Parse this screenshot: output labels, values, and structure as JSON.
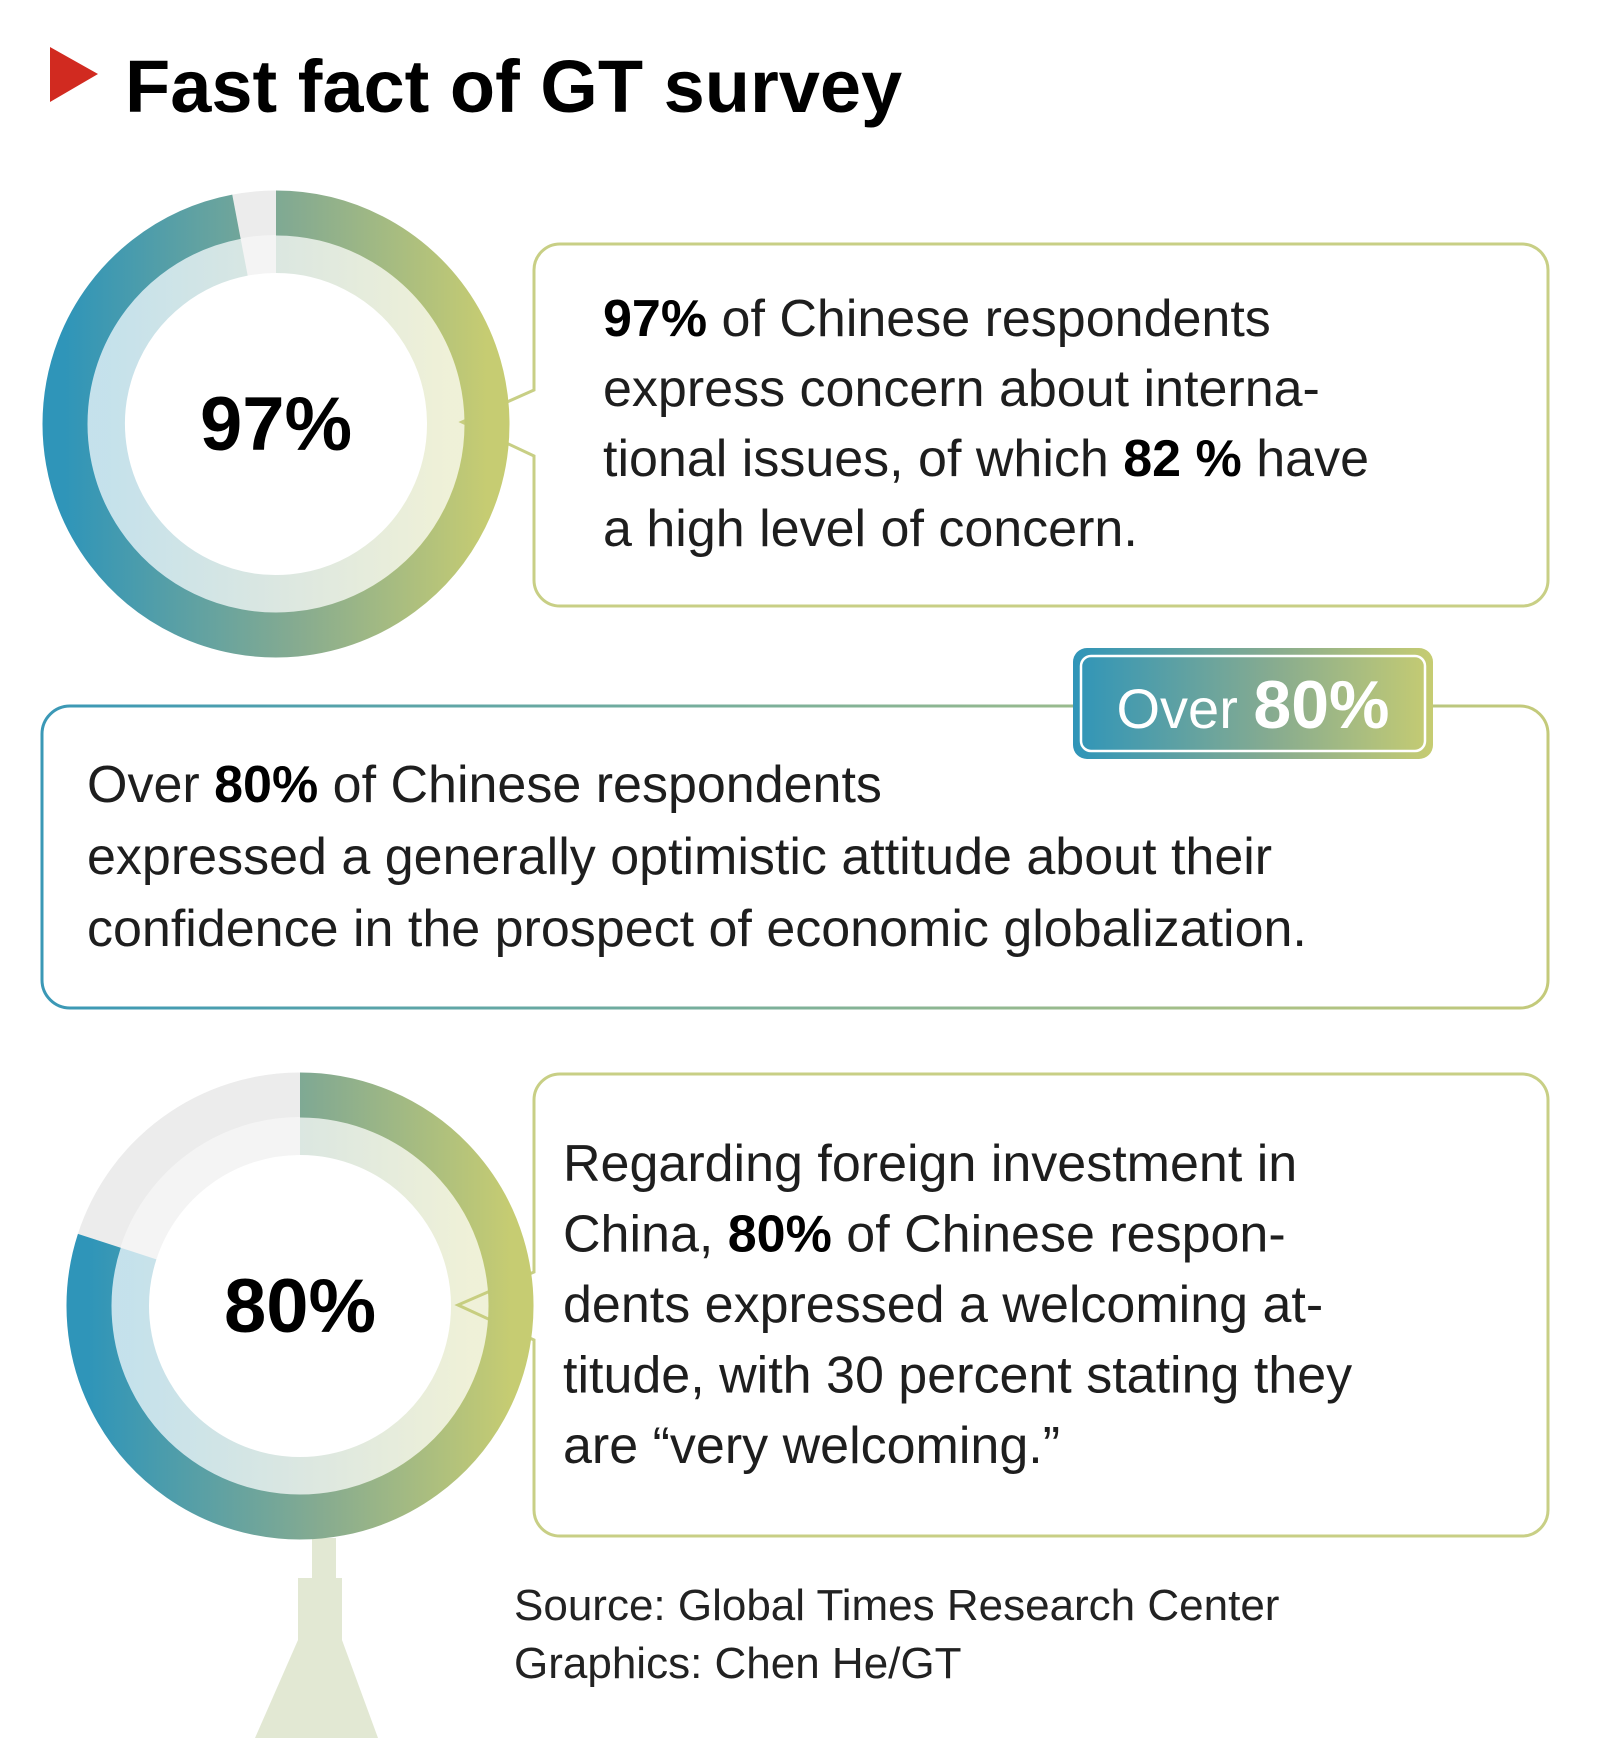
{
  "title": "Fast fact of GT survey",
  "chart_data": [
    {
      "type": "donut",
      "values": [
        97
      ],
      "value_labels": [
        "97%"
      ],
      "ylim": [
        0,
        100
      ]
    },
    {
      "type": "donut",
      "values": [
        80
      ],
      "value_labels": [
        "80%"
      ],
      "ylim": [
        0,
        100
      ]
    }
  ],
  "facts": [
    {
      "lines": [
        [
          {
            "text": "97%",
            "bold": true
          },
          " of Chinese respondents"
        ],
        [
          "express concern about interna-"
        ],
        [
          "tional issues, of which ",
          {
            "text": "82 %",
            "bold": true
          },
          " have"
        ],
        [
          "a high level of concern."
        ]
      ]
    },
    {
      "badge": [
        "Over ",
        {
          "text": "80%",
          "bold": true
        }
      ],
      "lines": [
        [
          "Over ",
          {
            "text": "80%",
            "bold": true
          },
          " of Chinese respondents"
        ],
        [
          "expressed a generally optimistic attitude about their"
        ],
        [
          "confidence in the prospect of economic globalization."
        ]
      ]
    },
    {
      "lines": [
        [
          "Regarding foreign investment in"
        ],
        [
          "China, ",
          {
            "text": "80%",
            "bold": true
          },
          " of Chinese respon-"
        ],
        [
          "dents expressed a welcoming at-"
        ],
        [
          "titude, with 30 percent stating they"
        ],
        [
          "are “very welcoming.”"
        ]
      ]
    }
  ],
  "source": "Source: Global Times Research Center",
  "credit": "Graphics: Chen He/GT"
}
